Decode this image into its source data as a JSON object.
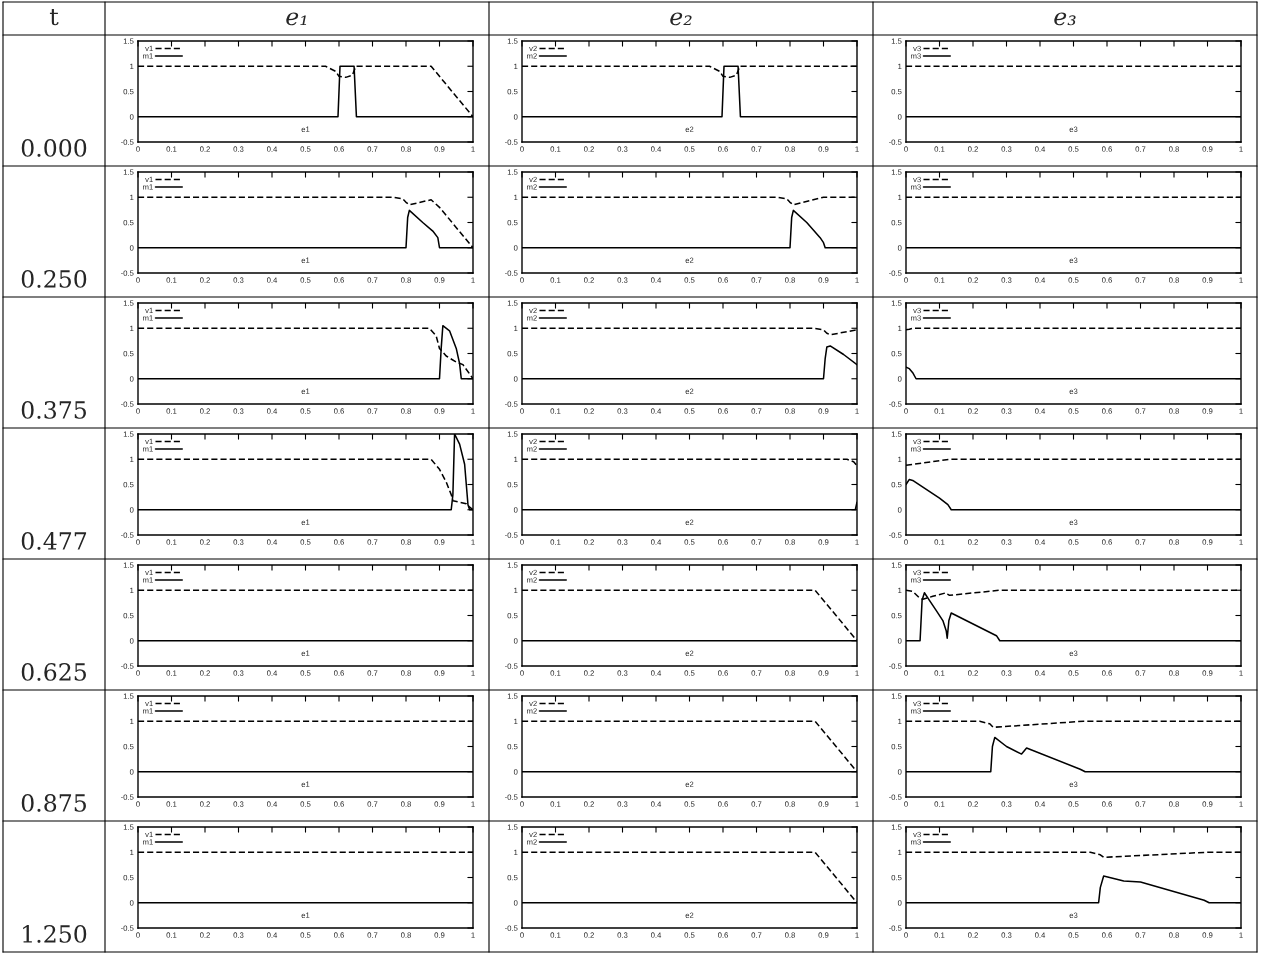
{
  "chart_data": [
    {
      "type": "line",
      "title": "e₁",
      "annotations": [
        "t",
        "0.000"
      ],
      "xlabel": "e1",
      "legend": "top left",
      "xlim": [
        0,
        1
      ],
      "ylim": [
        -0.5,
        1.5
      ],
      "xticks": [
        0,
        0.1,
        0.2,
        0.3,
        0.4,
        0.5,
        0.6,
        0.7,
        0.8,
        0.9,
        1
      ],
      "yticks": [
        -0.5,
        0,
        0.5,
        1,
        1.5
      ],
      "series": [
        {
          "name": "v1",
          "color": "#000000",
          "line_style": "dashed",
          "x": [
            0,
            0.56,
            0.59,
            0.6,
            0.62,
            0.64,
            0.65,
            0.875,
            1
          ],
          "values": [
            1,
            1,
            0.9,
            0.8,
            0.78,
            0.82,
            1,
            1,
            0
          ]
        },
        {
          "name": "m1",
          "color": "#000000",
          "line_style": "solid",
          "x": [
            0,
            0.597,
            0.603,
            0.645,
            0.652,
            1
          ],
          "values": [
            0,
            0,
            1,
            1,
            0,
            0
          ]
        }
      ]
    },
    {
      "type": "line",
      "title": "e₂",
      "xlabel": "e2",
      "legend": "top left",
      "xlim": [
        0,
        1
      ],
      "ylim": [
        -0.5,
        1.5
      ],
      "xticks": [
        0,
        0.1,
        0.2,
        0.3,
        0.4,
        0.5,
        0.6,
        0.7,
        0.8,
        0.9,
        1
      ],
      "yticks": [
        -0.5,
        0,
        0.5,
        1,
        1.5
      ],
      "series": [
        {
          "name": "v2",
          "color": "#000000",
          "line_style": "dashed",
          "x": [
            0,
            0.56,
            0.59,
            0.6,
            0.62,
            0.64,
            0.65,
            1
          ],
          "values": [
            1,
            1,
            0.9,
            0.8,
            0.78,
            0.82,
            1,
            1
          ]
        },
        {
          "name": "m2",
          "color": "#000000",
          "line_style": "solid",
          "x": [
            0,
            0.597,
            0.603,
            0.645,
            0.652,
            1
          ],
          "values": [
            0,
            0,
            1,
            1,
            0,
            0
          ]
        }
      ]
    },
    {
      "type": "line",
      "title": "e₃",
      "xlabel": "e3",
      "legend": "top left",
      "xlim": [
        0,
        1
      ],
      "ylim": [
        -0.5,
        1.5
      ],
      "xticks": [
        0,
        0.1,
        0.2,
        0.3,
        0.4,
        0.5,
        0.6,
        0.7,
        0.8,
        0.9,
        1
      ],
      "yticks": [
        -0.5,
        0,
        0.5,
        1,
        1.5
      ],
      "series": [
        {
          "name": "v3",
          "color": "#000000",
          "line_style": "dashed",
          "x": [
            0,
            1
          ],
          "values": [
            1,
            1
          ]
        },
        {
          "name": "m3",
          "color": "#000000",
          "line_style": "solid",
          "x": [
            0,
            1
          ],
          "values": [
            0,
            0
          ]
        }
      ]
    },
    {
      "type": "line",
      "annotations": [
        "0.250"
      ],
      "xlabel": "e1",
      "legend": "top left",
      "xlim": [
        0,
        1
      ],
      "ylim": [
        -0.5,
        1.5
      ],
      "xticks": [
        0,
        0.1,
        0.2,
        0.3,
        0.4,
        0.5,
        0.6,
        0.7,
        0.8,
        0.9,
        1
      ],
      "yticks": [
        -0.5,
        0,
        0.5,
        1,
        1.5
      ],
      "series": [
        {
          "name": "v1",
          "color": "#000000",
          "line_style": "dashed",
          "x": [
            0,
            0.76,
            0.79,
            0.8,
            0.81,
            0.875,
            0.9,
            1
          ],
          "values": [
            1,
            1,
            0.97,
            0.9,
            0.85,
            0.95,
            0.8,
            0
          ]
        },
        {
          "name": "m1",
          "color": "#000000",
          "line_style": "solid",
          "x": [
            0,
            0.8,
            0.805,
            0.81,
            0.85,
            0.88,
            0.895,
            0.9,
            1
          ],
          "values": [
            0,
            0,
            0.6,
            0.74,
            0.5,
            0.33,
            0.2,
            0,
            0
          ]
        }
      ]
    },
    {
      "type": "line",
      "xlabel": "e2",
      "legend": "top left",
      "xlim": [
        0,
        1
      ],
      "ylim": [
        -0.5,
        1.5
      ],
      "xticks": [
        0,
        0.1,
        0.2,
        0.3,
        0.4,
        0.5,
        0.6,
        0.7,
        0.8,
        0.9,
        1
      ],
      "yticks": [
        -0.5,
        0,
        0.5,
        1,
        1.5
      ],
      "series": [
        {
          "name": "v2",
          "color": "#000000",
          "line_style": "dashed",
          "x": [
            0,
            0.76,
            0.79,
            0.8,
            0.81,
            0.9,
            1
          ],
          "values": [
            1,
            1,
            0.97,
            0.9,
            0.85,
            1,
            1
          ]
        },
        {
          "name": "m2",
          "color": "#000000",
          "line_style": "solid",
          "x": [
            0,
            0.8,
            0.805,
            0.81,
            0.85,
            0.89,
            0.9,
            0.905,
            1
          ],
          "values": [
            0,
            0,
            0.6,
            0.74,
            0.5,
            0.2,
            0.1,
            0,
            0
          ]
        }
      ]
    },
    {
      "type": "line",
      "xlabel": "e3",
      "legend": "top left",
      "xlim": [
        0,
        1
      ],
      "ylim": [
        -0.5,
        1.5
      ],
      "xticks": [
        0,
        0.1,
        0.2,
        0.3,
        0.4,
        0.5,
        0.6,
        0.7,
        0.8,
        0.9,
        1
      ],
      "yticks": [
        -0.5,
        0,
        0.5,
        1,
        1.5
      ],
      "series": [
        {
          "name": "v3",
          "color": "#000000",
          "line_style": "dashed",
          "x": [
            0,
            1
          ],
          "values": [
            1,
            1
          ]
        },
        {
          "name": "m3",
          "color": "#000000",
          "line_style": "solid",
          "x": [
            0,
            1
          ],
          "values": [
            0,
            0
          ]
        }
      ]
    },
    {
      "type": "line",
      "annotations": [
        "0.375"
      ],
      "xlabel": "e1",
      "legend": "top left",
      "xlim": [
        0,
        1
      ],
      "ylim": [
        -0.5,
        1.5
      ],
      "xticks": [
        0,
        0.1,
        0.2,
        0.3,
        0.4,
        0.5,
        0.6,
        0.7,
        0.8,
        0.9,
        1
      ],
      "yticks": [
        -0.5,
        0,
        0.5,
        1,
        1.5
      ],
      "series": [
        {
          "name": "v1",
          "color": "#000000",
          "line_style": "dashed",
          "x": [
            0,
            0.87,
            0.89,
            0.9,
            0.92,
            0.95,
            0.97,
            1
          ],
          "values": [
            1,
            1,
            0.85,
            0.6,
            0.45,
            0.33,
            0.28,
            0
          ]
        },
        {
          "name": "m1",
          "color": "#000000",
          "line_style": "solid",
          "x": [
            0,
            0.9,
            0.905,
            0.91,
            0.93,
            0.95,
            0.96,
            0.965,
            1
          ],
          "values": [
            0,
            0,
            0.6,
            1.05,
            0.95,
            0.6,
            0.3,
            0,
            0
          ]
        }
      ]
    },
    {
      "type": "line",
      "xlabel": "e2",
      "legend": "top left",
      "xlim": [
        0,
        1
      ],
      "ylim": [
        -0.5,
        1.5
      ],
      "xticks": [
        0,
        0.1,
        0.2,
        0.3,
        0.4,
        0.5,
        0.6,
        0.7,
        0.8,
        0.9,
        1
      ],
      "yticks": [
        -0.5,
        0,
        0.5,
        1,
        1.5
      ],
      "series": [
        {
          "name": "v2",
          "color": "#000000",
          "line_style": "dashed",
          "x": [
            0,
            0.87,
            0.9,
            0.91,
            0.92,
            1
          ],
          "values": [
            1,
            1,
            0.97,
            0.9,
            0.87,
            0.97
          ]
        },
        {
          "name": "m2",
          "color": "#000000",
          "line_style": "solid",
          "x": [
            0,
            0.9,
            0.905,
            0.91,
            0.92,
            0.96,
            1
          ],
          "values": [
            0,
            0,
            0.4,
            0.63,
            0.65,
            0.48,
            0.28
          ]
        }
      ]
    },
    {
      "type": "line",
      "xlabel": "e3",
      "legend": "top left",
      "xlim": [
        0,
        1
      ],
      "ylim": [
        -0.5,
        1.5
      ],
      "xticks": [
        0,
        0.1,
        0.2,
        0.3,
        0.4,
        0.5,
        0.6,
        0.7,
        0.8,
        0.9,
        1
      ],
      "yticks": [
        -0.5,
        0,
        0.5,
        1,
        1.5
      ],
      "series": [
        {
          "name": "v3",
          "color": "#000000",
          "line_style": "dashed",
          "x": [
            0,
            0.01,
            0.02,
            1
          ],
          "values": [
            0.97,
            0.98,
            1,
            1
          ]
        },
        {
          "name": "m3",
          "color": "#000000",
          "line_style": "solid",
          "x": [
            0,
            0.01,
            0.02,
            0.03,
            1
          ],
          "values": [
            0.23,
            0.2,
            0.12,
            0,
            0
          ]
        }
      ]
    },
    {
      "type": "line",
      "annotations": [
        "0.477"
      ],
      "xlabel": "e1",
      "legend": "top left",
      "xlim": [
        0,
        1
      ],
      "ylim": [
        -0.5,
        1.5
      ],
      "xticks": [
        0,
        0.1,
        0.2,
        0.3,
        0.4,
        0.5,
        0.6,
        0.7,
        0.8,
        0.9,
        1
      ],
      "yticks": [
        -0.5,
        0,
        0.5,
        1,
        1.5
      ],
      "series": [
        {
          "name": "v1",
          "color": "#000000",
          "line_style": "dashed",
          "x": [
            0,
            0.875,
            0.9,
            0.92,
            0.935,
            0.94,
            0.98,
            0.99,
            1
          ],
          "values": [
            1,
            1,
            0.8,
            0.55,
            0.3,
            0.18,
            0.12,
            0.05,
            0
          ]
        },
        {
          "name": "m1",
          "color": "#000000",
          "line_style": "solid",
          "x": [
            0,
            0.935,
            0.94,
            0.945,
            0.96,
            0.975,
            0.985,
            0.99,
            1
          ],
          "values": [
            0,
            0,
            0.3,
            1.5,
            1.3,
            0.9,
            0.1,
            0,
            0
          ]
        }
      ]
    },
    {
      "type": "line",
      "xlabel": "e2",
      "legend": "top left",
      "xlim": [
        0,
        1
      ],
      "ylim": [
        -0.5,
        1.5
      ],
      "xticks": [
        0,
        0.1,
        0.2,
        0.3,
        0.4,
        0.5,
        0.6,
        0.7,
        0.8,
        0.9,
        1
      ],
      "yticks": [
        -0.5,
        0,
        0.5,
        1,
        1.5
      ],
      "series": [
        {
          "name": "v2",
          "color": "#000000",
          "line_style": "dashed",
          "x": [
            0,
            0.97,
            0.99,
            1
          ],
          "values": [
            1,
            1,
            0.95,
            0.87
          ]
        },
        {
          "name": "m2",
          "color": "#000000",
          "line_style": "solid",
          "x": [
            0,
            0.995,
            1
          ],
          "values": [
            0,
            0,
            0.15
          ]
        }
      ]
    },
    {
      "type": "line",
      "xlabel": "e3",
      "legend": "top left",
      "xlim": [
        0,
        1
      ],
      "ylim": [
        -0.5,
        1.5
      ],
      "xticks": [
        0,
        0.1,
        0.2,
        0.3,
        0.4,
        0.5,
        0.6,
        0.7,
        0.8,
        0.9,
        1
      ],
      "yticks": [
        -0.5,
        0,
        0.5,
        1,
        1.5
      ],
      "series": [
        {
          "name": "v3",
          "color": "#000000",
          "line_style": "dashed",
          "x": [
            0,
            0.13,
            1
          ],
          "values": [
            0.88,
            1,
            1
          ]
        },
        {
          "name": "m3",
          "color": "#000000",
          "line_style": "solid",
          "x": [
            0,
            0.01,
            0.02,
            0.1,
            0.125,
            0.135,
            1
          ],
          "values": [
            0.5,
            0.6,
            0.58,
            0.23,
            0.1,
            0,
            0
          ]
        }
      ]
    },
    {
      "type": "line",
      "annotations": [
        "0.625"
      ],
      "xlabel": "e1",
      "legend": "top left",
      "xlim": [
        0,
        1
      ],
      "ylim": [
        -0.5,
        1.5
      ],
      "xticks": [
        0,
        0.1,
        0.2,
        0.3,
        0.4,
        0.5,
        0.6,
        0.7,
        0.8,
        0.9,
        1
      ],
      "yticks": [
        -0.5,
        0,
        0.5,
        1,
        1.5
      ],
      "series": [
        {
          "name": "v1",
          "color": "#000000",
          "line_style": "dashed",
          "x": [
            0,
            1
          ],
          "values": [
            1,
            1
          ]
        },
        {
          "name": "m1",
          "color": "#000000",
          "line_style": "solid",
          "x": [
            0,
            1
          ],
          "values": [
            0,
            0
          ]
        }
      ]
    },
    {
      "type": "line",
      "xlabel": "e2",
      "legend": "top left",
      "xlim": [
        0,
        1
      ],
      "ylim": [
        -0.5,
        1.5
      ],
      "xticks": [
        0,
        0.1,
        0.2,
        0.3,
        0.4,
        0.5,
        0.6,
        0.7,
        0.8,
        0.9,
        1
      ],
      "yticks": [
        -0.5,
        0,
        0.5,
        1,
        1.5
      ],
      "series": [
        {
          "name": "v2",
          "color": "#000000",
          "line_style": "dashed",
          "x": [
            0,
            0.875,
            1
          ],
          "values": [
            1,
            1,
            0
          ]
        },
        {
          "name": "m2",
          "color": "#000000",
          "line_style": "solid",
          "x": [
            0,
            1
          ],
          "values": [
            0,
            0
          ]
        }
      ]
    },
    {
      "type": "line",
      "xlabel": "e3",
      "legend": "top left",
      "xlim": [
        0,
        1
      ],
      "ylim": [
        -0.5,
        1.5
      ],
      "xticks": [
        0,
        0.1,
        0.2,
        0.3,
        0.4,
        0.5,
        0.6,
        0.7,
        0.8,
        0.9,
        1
      ],
      "yticks": [
        -0.5,
        0,
        0.5,
        1,
        1.5
      ],
      "series": [
        {
          "name": "v3",
          "color": "#000000",
          "line_style": "dashed",
          "x": [
            0,
            0.02,
            0.04,
            0.05,
            0.08,
            0.12,
            0.125,
            0.13,
            0.28,
            1
          ],
          "values": [
            1,
            0.98,
            0.85,
            0.82,
            0.88,
            0.95,
            0.92,
            0.9,
            1,
            1
          ]
        },
        {
          "name": "m3",
          "color": "#000000",
          "line_style": "solid",
          "x": [
            0,
            0.042,
            0.048,
            0.055,
            0.07,
            0.09,
            0.11,
            0.12,
            0.123,
            0.128,
            0.135,
            0.27,
            0.28,
            1
          ],
          "values": [
            0,
            0,
            0.8,
            0.95,
            0.8,
            0.6,
            0.4,
            0.2,
            0.05,
            0.4,
            0.55,
            0.1,
            0,
            0
          ]
        }
      ]
    },
    {
      "type": "line",
      "annotations": [
        "0.875"
      ],
      "xlabel": "e1",
      "legend": "top left",
      "xlim": [
        0,
        1
      ],
      "ylim": [
        -0.5,
        1.5
      ],
      "xticks": [
        0,
        0.1,
        0.2,
        0.3,
        0.4,
        0.5,
        0.6,
        0.7,
        0.8,
        0.9,
        1
      ],
      "yticks": [
        -0.5,
        0,
        0.5,
        1,
        1.5
      ],
      "series": [
        {
          "name": "v1",
          "color": "#000000",
          "line_style": "dashed",
          "x": [
            0,
            1
          ],
          "values": [
            1,
            1
          ]
        },
        {
          "name": "m1",
          "color": "#000000",
          "line_style": "solid",
          "x": [
            0,
            1
          ],
          "values": [
            0,
            0
          ]
        }
      ]
    },
    {
      "type": "line",
      "xlabel": "e2",
      "legend": "top left",
      "xlim": [
        0,
        1
      ],
      "ylim": [
        -0.5,
        1.5
      ],
      "xticks": [
        0,
        0.1,
        0.2,
        0.3,
        0.4,
        0.5,
        0.6,
        0.7,
        0.8,
        0.9,
        1
      ],
      "yticks": [
        -0.5,
        0,
        0.5,
        1,
        1.5
      ],
      "series": [
        {
          "name": "v2",
          "color": "#000000",
          "line_style": "dashed",
          "x": [
            0,
            0.875,
            1
          ],
          "values": [
            1,
            1,
            0
          ]
        },
        {
          "name": "m2",
          "color": "#000000",
          "line_style": "solid",
          "x": [
            0,
            1
          ],
          "values": [
            0,
            0
          ]
        }
      ]
    },
    {
      "type": "line",
      "xlabel": "e3",
      "legend": "top left",
      "xlim": [
        0,
        1
      ],
      "ylim": [
        -0.5,
        1.5
      ],
      "xticks": [
        0,
        0.1,
        0.2,
        0.3,
        0.4,
        0.5,
        0.6,
        0.7,
        0.8,
        0.9,
        1
      ],
      "yticks": [
        -0.5,
        0,
        0.5,
        1,
        1.5
      ],
      "series": [
        {
          "name": "v3",
          "color": "#000000",
          "line_style": "dashed",
          "x": [
            0,
            0.22,
            0.25,
            0.26,
            0.35,
            0.53,
            1
          ],
          "values": [
            1,
            1,
            0.95,
            0.88,
            0.92,
            1,
            1
          ]
        },
        {
          "name": "m3",
          "color": "#000000",
          "line_style": "solid",
          "x": [
            0,
            0.253,
            0.258,
            0.265,
            0.3,
            0.345,
            0.36,
            0.52,
            0.535,
            1
          ],
          "values": [
            0,
            0,
            0.5,
            0.68,
            0.5,
            0.35,
            0.47,
            0.05,
            0,
            0
          ]
        }
      ]
    },
    {
      "type": "line",
      "annotations": [
        "1.250"
      ],
      "xlabel": "e1",
      "legend": "top left",
      "xlim": [
        0,
        1
      ],
      "ylim": [
        -0.5,
        1.5
      ],
      "xticks": [
        0,
        0.1,
        0.2,
        0.3,
        0.4,
        0.5,
        0.6,
        0.7,
        0.8,
        0.9,
        1
      ],
      "yticks": [
        -0.5,
        0,
        0.5,
        1,
        1.5
      ],
      "series": [
        {
          "name": "v1",
          "color": "#000000",
          "line_style": "dashed",
          "x": [
            0,
            1
          ],
          "values": [
            1,
            1
          ]
        },
        {
          "name": "m1",
          "color": "#000000",
          "line_style": "solid",
          "x": [
            0,
            1
          ],
          "values": [
            0,
            0
          ]
        }
      ]
    },
    {
      "type": "line",
      "xlabel": "e2",
      "legend": "top left",
      "xlim": [
        0,
        1
      ],
      "ylim": [
        -0.5,
        1.5
      ],
      "xticks": [
        0,
        0.1,
        0.2,
        0.3,
        0.4,
        0.5,
        0.6,
        0.7,
        0.8,
        0.9,
        1
      ],
      "yticks": [
        -0.5,
        0,
        0.5,
        1,
        1.5
      ],
      "series": [
        {
          "name": "v2",
          "color": "#000000",
          "line_style": "dashed",
          "x": [
            0,
            0.875,
            1
          ],
          "values": [
            1,
            1,
            0
          ]
        },
        {
          "name": "m2",
          "color": "#000000",
          "line_style": "solid",
          "x": [
            0,
            1
          ],
          "values": [
            0,
            0
          ]
        }
      ]
    },
    {
      "type": "line",
      "xlabel": "e3",
      "legend": "top left",
      "xlim": [
        0,
        1
      ],
      "ylim": [
        -0.5,
        1.5
      ],
      "xticks": [
        0,
        0.1,
        0.2,
        0.3,
        0.4,
        0.5,
        0.6,
        0.7,
        0.8,
        0.9,
        1
      ],
      "yticks": [
        -0.5,
        0,
        0.5,
        1,
        1.5
      ],
      "series": [
        {
          "name": "v3",
          "color": "#000000",
          "line_style": "dashed",
          "x": [
            0,
            0.55,
            0.58,
            0.59,
            0.9,
            1
          ],
          "values": [
            1,
            1,
            0.95,
            0.9,
            1,
            1
          ]
        },
        {
          "name": "m3",
          "color": "#000000",
          "line_style": "solid",
          "x": [
            0,
            0.575,
            0.58,
            0.59,
            0.65,
            0.7,
            0.89,
            0.905,
            1
          ],
          "values": [
            0,
            0,
            0.3,
            0.53,
            0.43,
            0.41,
            0.05,
            0,
            0
          ]
        }
      ]
    }
  ]
}
